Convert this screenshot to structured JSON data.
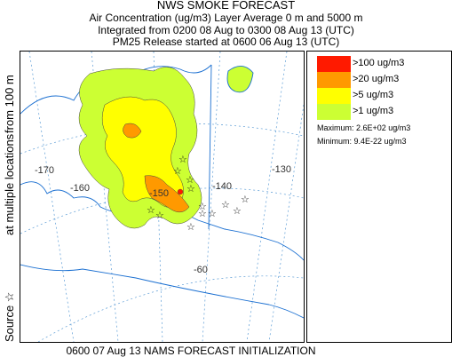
{
  "header": {
    "title": "NWS SMOKE FORECAST",
    "line2": "Air Concentration (ug/m3) Layer Average    0 m and  5000 m",
    "line3": "Integrated from 0200 08 Aug to 0300 08 Aug 13 (UTC)",
    "line4": "PM25 Release started at 0600 06 Aug 13 (UTC)"
  },
  "side_label": {
    "left": "Source ☆",
    "mid": "at multiple locations",
    "right": "from   100 m"
  },
  "legend": {
    "items": [
      {
        "label": ">100 ug/m3",
        "color": "#ff1a00"
      },
      {
        "label": ">20 ug/m3",
        "color": "#ff9900"
      },
      {
        "label": ">5 ug/m3",
        "color": "#ffff00"
      },
      {
        "label": ">1 ug/m3",
        "color": "#ccff33"
      }
    ],
    "maximum": "Maximum: 2.6E+02 ug/m3",
    "minimum": "Minimum: 9.4E-22 ug/m3"
  },
  "map": {
    "longitude_labels": [
      "-170",
      "-160",
      "-150",
      "-140",
      "-130",
      "-60"
    ]
  },
  "footer": "0600 07 Aug 13 NAMS FORECAST INITIALIZATION"
}
